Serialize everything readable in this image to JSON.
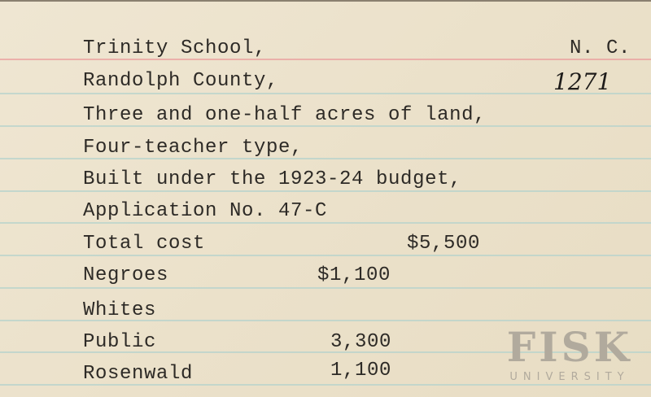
{
  "card": {
    "state": "N. C.",
    "number": "1271",
    "lines": [
      "Trinity School,",
      "Randolph County,",
      "Three and one-half acres of land,",
      "Four-teacher type,",
      "Built under the 1923-24 budget,",
      "Application No. 47-C"
    ],
    "costs": [
      {
        "label": "Total cost",
        "amount": "$5,500"
      },
      {
        "label": "Negroes",
        "amount": "$1,100"
      },
      {
        "label": "Whites",
        "amount": ""
      },
      {
        "label": "Public",
        "amount": "3,300"
      },
      {
        "label": "Rosenwald",
        "amount": "1,100"
      }
    ]
  },
  "watermark": {
    "name": "FISK",
    "subtitle": "UNIVERSITY"
  }
}
